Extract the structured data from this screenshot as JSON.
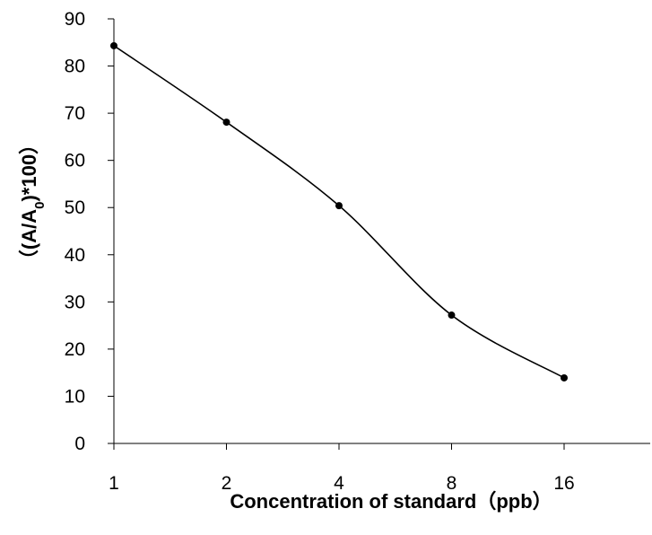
{
  "chart_data": {
    "type": "line",
    "title": "",
    "xlabel": "Concentration of standard（ppb）",
    "ylabel": "（(A/A₀)*100）",
    "ylabel_parts": {
      "prefix": "（(A/A",
      "subscript": "0",
      "suffix": ")*100）"
    },
    "categories": [
      "1",
      "2",
      "4",
      "8",
      "16"
    ],
    "values": [
      84.3,
      68.1,
      50.4,
      27.2,
      13.9
    ],
    "ylim": [
      0,
      90
    ],
    "yticks": [
      0,
      10,
      20,
      30,
      40,
      50,
      60,
      70,
      80,
      90
    ],
    "grid": false,
    "legend": "none",
    "colors": {
      "line": "#000000",
      "marker": "#000000",
      "axis": "#000000"
    },
    "marker": "circle",
    "smooth": true
  }
}
